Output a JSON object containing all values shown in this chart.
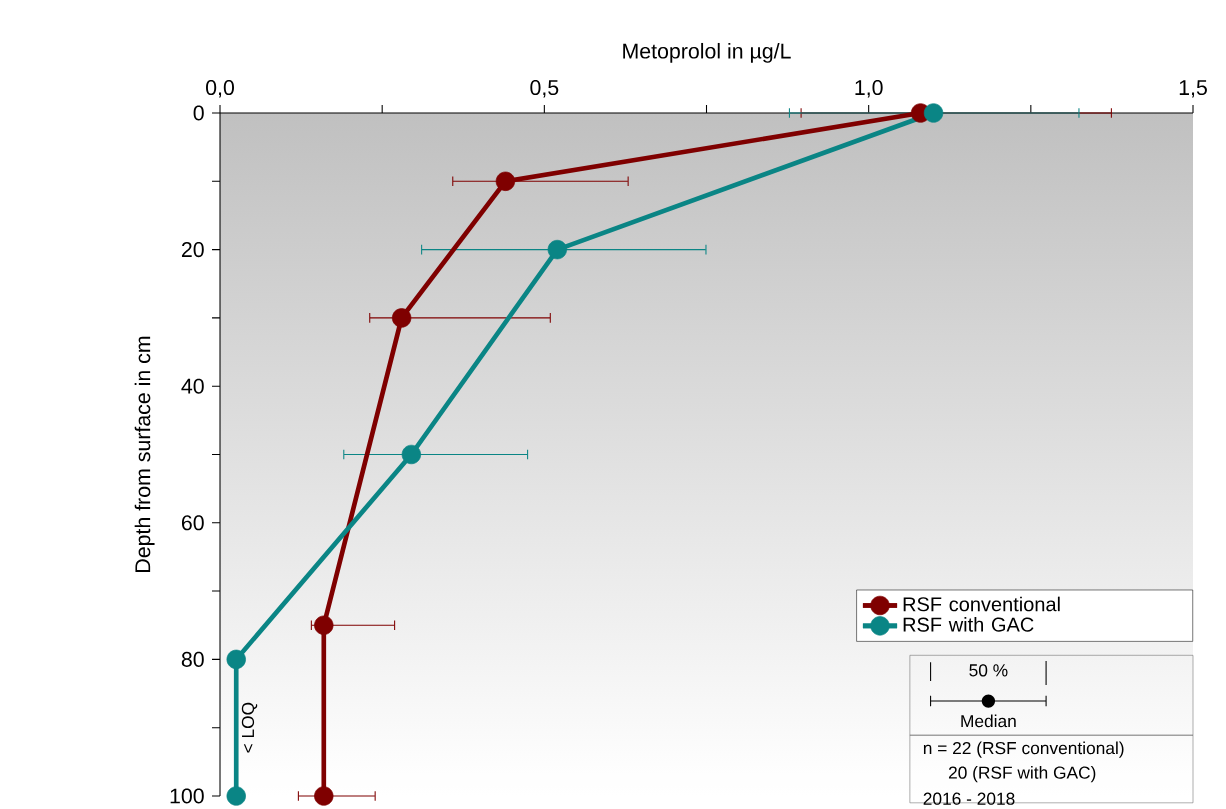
{
  "chart_data": {
    "type": "line",
    "xlabel": "Metoprolol in µg/L",
    "ylabel": "Depth from surface in cm",
    "xlim": [
      0,
      1.5
    ],
    "ylim": [
      100,
      0
    ],
    "xticks": [
      {
        "value": 0,
        "label": "0,0"
      },
      {
        "value": 0.25,
        "label": null
      },
      {
        "value": 0.5,
        "label": "0,5"
      },
      {
        "value": 0.75,
        "label": null
      },
      {
        "value": 1.0,
        "label": "1,0"
      },
      {
        "value": 1.25,
        "label": null
      },
      {
        "value": 1.5,
        "label": "1,5"
      }
    ],
    "yticks": [
      0,
      {
        "value": 10,
        "label": null
      },
      20,
      {
        "value": 30,
        "label": null
      },
      40,
      {
        "value": 50,
        "label": null
      },
      60,
      {
        "value": 70,
        "label": null
      },
      80,
      {
        "value": 90,
        "label": null
      },
      100
    ],
    "marker": "circle",
    "line_style": "solid",
    "legend": "bottom right",
    "series": [
      {
        "name": "RSF conventional",
        "color": "#7f0000",
        "x": [
          1.08,
          0.44,
          0.28,
          0.16,
          0.16
        ],
        "values": [
          0,
          10,
          30,
          75,
          100
        ],
        "xerrors": [
          [
            0.895,
            1.375
          ],
          [
            0.358,
            0.63
          ],
          [
            0.23,
            0.51
          ],
          [
            0.14,
            0.27
          ],
          [
            0.12,
            0.24
          ]
        ]
      },
      {
        "name": "RSF with GAC",
        "color": "#0a8585",
        "x": [
          1.1,
          0.52,
          0.295,
          0.025,
          0.025
        ],
        "values": [
          0,
          20,
          50,
          80,
          100
        ],
        "xerrors": [
          [
            0.877,
            1.325
          ],
          [
            0.31,
            0.75
          ],
          [
            0.19,
            0.475
          ],
          null,
          null
        ]
      }
    ],
    "annotations": [
      {
        "text": "< LOQ",
        "x": 0.025,
        "y": 90
      },
      "50 %",
      "Median",
      "n = 22 (RSF conventional)",
      "20 (RSF with GAC)",
      "2016 - 2018"
    ]
  }
}
